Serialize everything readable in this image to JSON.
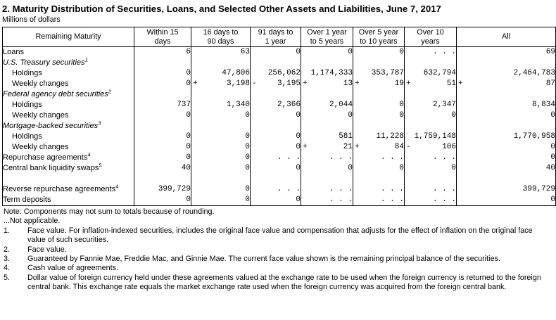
{
  "title": "2. Maturity Distribution of Securities, Loans, and Selected Other Assets and Liabilities, June 7, 2017",
  "subtitle": "Millions of dollars",
  "table": {
    "corner_label": "Remaining Maturity",
    "columns": [
      "Within 15\ndays",
      "16 days to\n90 days",
      "91 days to\n1 year",
      "Over 1 year\nto 5 years",
      "Over 5 year\nto 10 years",
      "Over 10\nyears",
      "All"
    ],
    "rows": [
      {
        "label": "Loans",
        "style": "plain",
        "cells": [
          {
            "v": "6"
          },
          {
            "v": "63"
          },
          {
            "v": "0"
          },
          {
            "v": "0"
          },
          {
            "v": "0"
          },
          {
            "v": ". . ."
          },
          {
            "v": "69"
          }
        ]
      },
      {
        "label": "U.S. Treasury securities",
        "sup": "1",
        "style": "section",
        "cells": []
      },
      {
        "label": "Holdings",
        "style": "indent",
        "cells": [
          {
            "v": "0"
          },
          {
            "v": "47,806"
          },
          {
            "v": "256,062"
          },
          {
            "v": "1,174,333"
          },
          {
            "v": "353,787"
          },
          {
            "v": "632,794"
          },
          {
            "v": "2,464,783"
          }
        ]
      },
      {
        "label": "Weekly changes",
        "style": "indent",
        "cells": [
          {
            "v": "0"
          },
          {
            "s": "+",
            "v": "3,198"
          },
          {
            "s": "-",
            "v": "3,195"
          },
          {
            "s": "+",
            "v": "13"
          },
          {
            "s": "+",
            "v": "19"
          },
          {
            "s": "+",
            "v": "51"
          },
          {
            "s": "+",
            "v": "87"
          }
        ]
      },
      {
        "label": "Federal agency debt securities",
        "sup": "2",
        "style": "section",
        "cells": []
      },
      {
        "label": "Holdings",
        "style": "indent",
        "cells": [
          {
            "v": "737"
          },
          {
            "v": "1,340"
          },
          {
            "v": "2,366"
          },
          {
            "v": "2,044"
          },
          {
            "v": "0"
          },
          {
            "v": "2,347"
          },
          {
            "v": "8,834"
          }
        ]
      },
      {
        "label": "Weekly changes",
        "style": "indent",
        "cells": [
          {
            "v": "0"
          },
          {
            "v": "0"
          },
          {
            "v": "0"
          },
          {
            "v": "0"
          },
          {
            "v": "0"
          },
          {
            "v": "0"
          },
          {
            "v": "0"
          }
        ]
      },
      {
        "label": "Mortgage-backed securities",
        "sup": "3",
        "style": "section",
        "cells": []
      },
      {
        "label": "Holdings",
        "style": "indent",
        "cells": [
          {
            "v": "0"
          },
          {
            "v": "0"
          },
          {
            "v": "0"
          },
          {
            "v": "581"
          },
          {
            "v": "11,228"
          },
          {
            "v": "1,759,148"
          },
          {
            "v": "1,770,958"
          }
        ]
      },
      {
        "label": "Weekly changes",
        "style": "indent",
        "cells": [
          {
            "v": "0"
          },
          {
            "v": "0"
          },
          {
            "v": "0"
          },
          {
            "s": "+",
            "v": "21"
          },
          {
            "s": "+",
            "v": "84"
          },
          {
            "s": "-",
            "v": "106"
          },
          {
            "v": "0"
          }
        ]
      },
      {
        "label": "Repurchase agreements",
        "sup": "4",
        "style": "plain",
        "cells": [
          {
            "v": "0"
          },
          {
            "v": "0"
          },
          {
            "v": ". . ."
          },
          {
            "v": ". . ."
          },
          {
            "v": ". . ."
          },
          {
            "v": ". . ."
          },
          {
            "v": "0"
          }
        ]
      },
      {
        "label": "Central bank liquidity swaps",
        "sup": "5",
        "style": "plain",
        "cells": [
          {
            "v": "40"
          },
          {
            "v": "0"
          },
          {
            "v": "0"
          },
          {
            "v": "0"
          },
          {
            "v": "0"
          },
          {
            "v": "0"
          },
          {
            "v": "40"
          }
        ]
      },
      {
        "style": "spacer",
        "cells": []
      },
      {
        "label": "Reverse repurchase agreements",
        "sup": "4",
        "style": "plain",
        "cells": [
          {
            "v": "399,729"
          },
          {
            "v": "0"
          },
          {
            "v": ". . ."
          },
          {
            "v": ". . ."
          },
          {
            "v": ". . ."
          },
          {
            "v": ". . ."
          },
          {
            "v": "399,729"
          }
        ]
      },
      {
        "label": "Term deposits",
        "style": "plain",
        "cells": [
          {
            "v": "0"
          },
          {
            "v": "0"
          },
          {
            "v": "0"
          },
          {
            "v": ". . ."
          },
          {
            "v": ". . ."
          },
          {
            "v": ". . ."
          },
          {
            "v": "0"
          }
        ]
      }
    ]
  },
  "notes": {
    "general": "Note: Components may not sum to totals because of rounding.",
    "not_applicable": "...Not applicable.",
    "numbered": [
      {
        "num": "1.",
        "text": "Face value. For inflation-indexed securities, includes the original face value and compensation that adjusts for the effect of inflation on the original face value of such securities."
      },
      {
        "num": "2.",
        "text": "Face value."
      },
      {
        "num": "3.",
        "text": "Guaranteed by Fannie Mae, Freddie Mac, and Ginnie Mae. The current face value shown is the remaining principal balance of the securities."
      },
      {
        "num": "4.",
        "text": "Cash value of agreements."
      },
      {
        "num": "5.",
        "text": "Dollar value of foreign currency held under these agreements valued at the exchange rate to be used when the foreign currency is returned to the foreign central bank. This exchange rate equals the market exchange rate used when the foreign currency was acquired from the foreign central bank."
      }
    ]
  }
}
